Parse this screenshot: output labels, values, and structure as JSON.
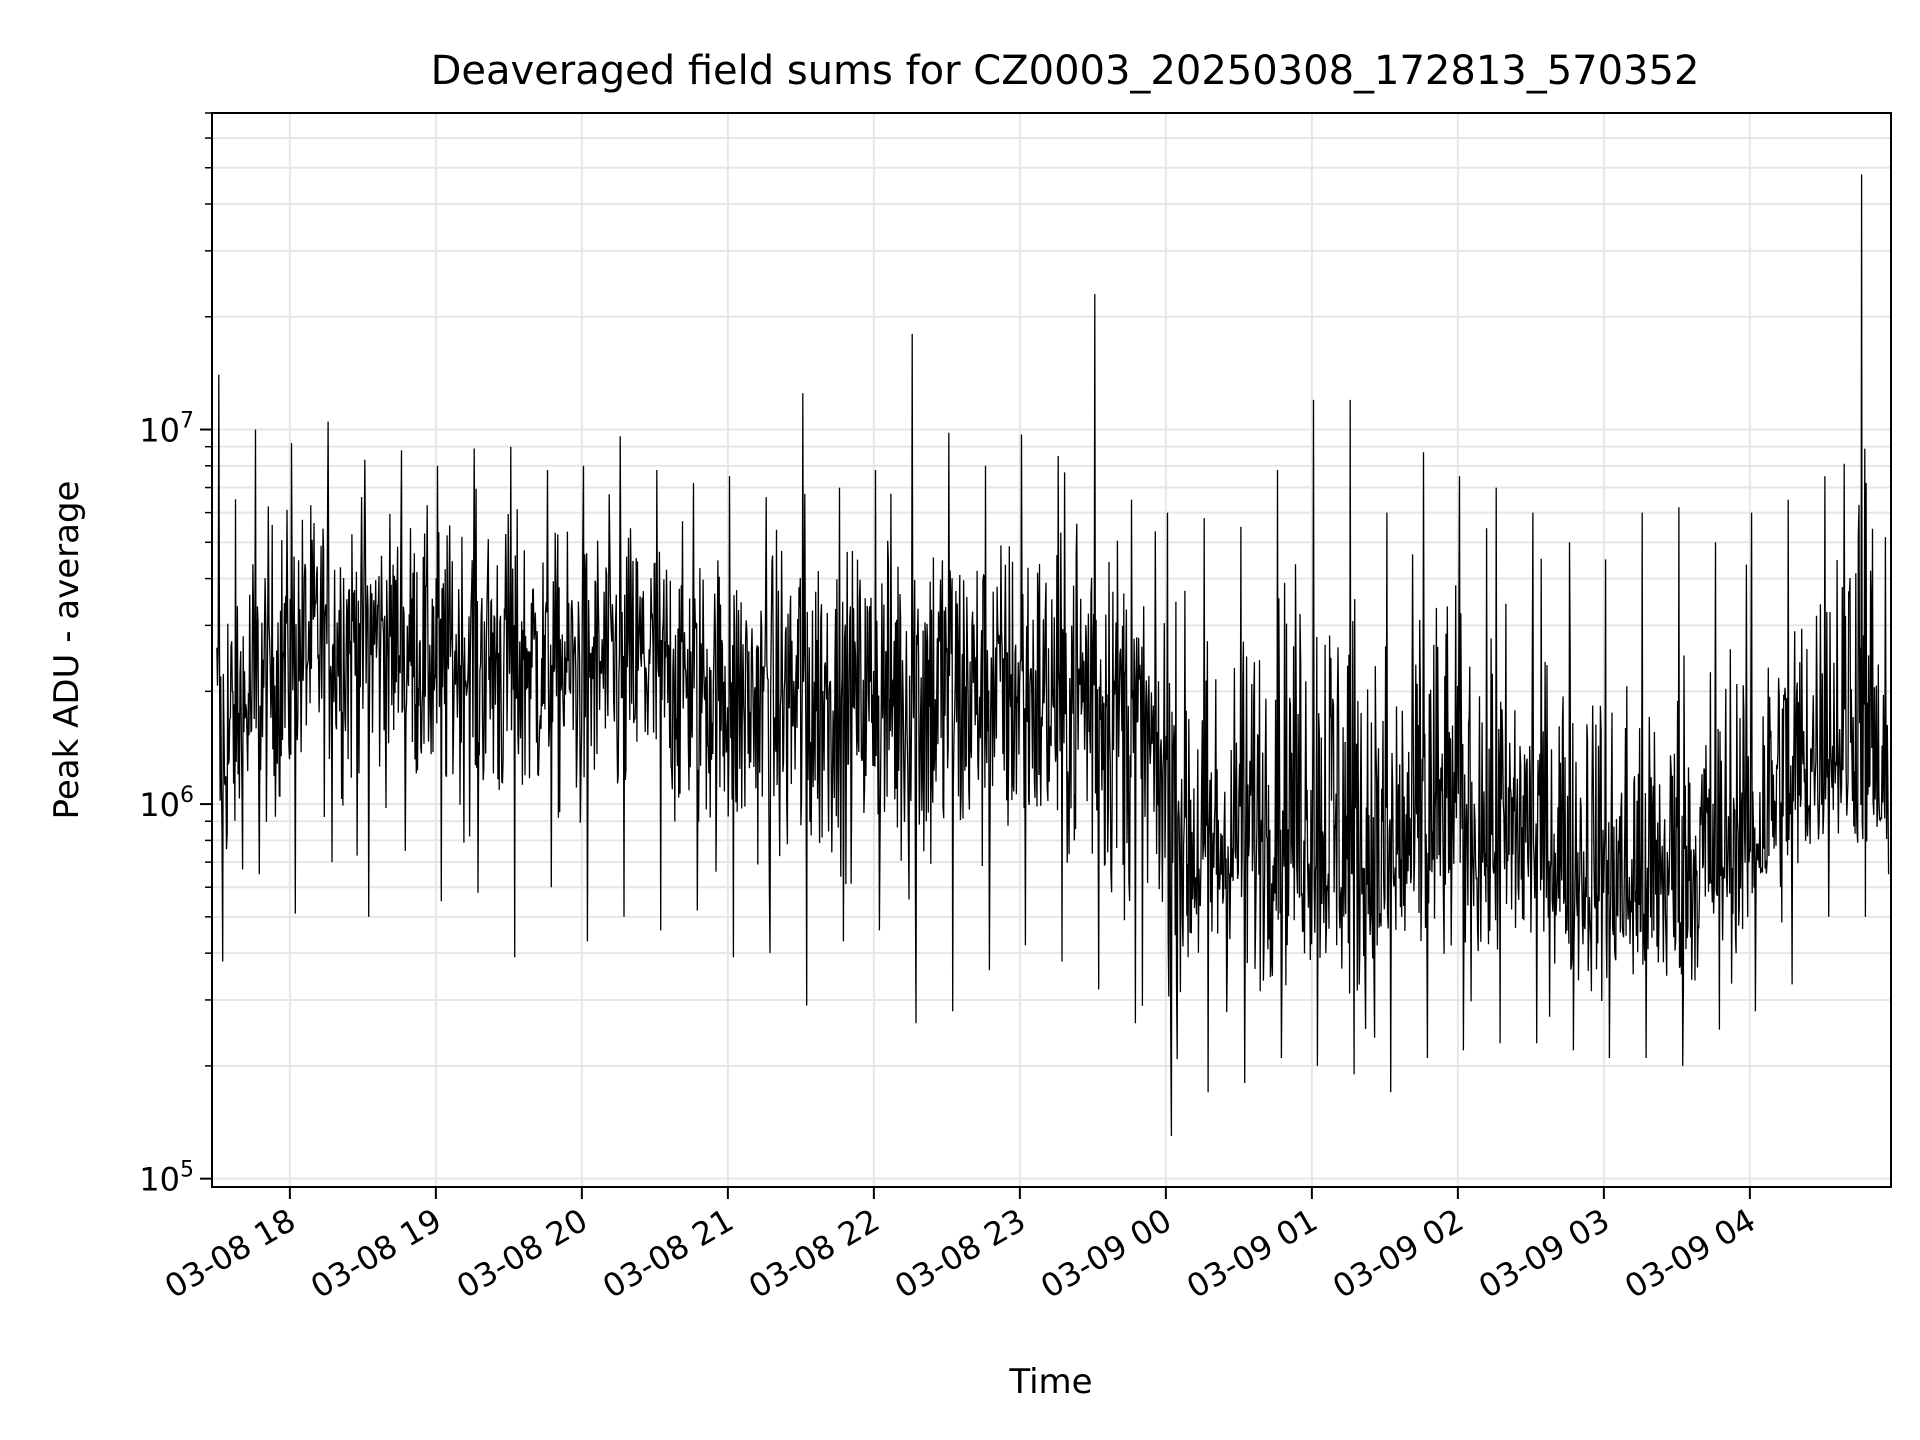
{
  "chart_data": {
    "type": "line",
    "title": "Deaveraged field sums for CZ0003_20250308_172813_570352",
    "xlabel": "Time",
    "ylabel": "Peak ADU - average",
    "x_tick_labels": [
      "03-08 18",
      "03-08 19",
      "03-08 20",
      "03-08 21",
      "03-08 22",
      "03-08 23",
      "03-09 00",
      "03-09 01",
      "03-09 02",
      "03-09 03",
      "03-09 04"
    ],
    "x_ticks": [
      "2025-03-08 18:00",
      "2025-03-08 19:00",
      "2025-03-08 20:00",
      "2025-03-08 21:00",
      "2025-03-08 22:00",
      "2025-03-08 23:00",
      "2025-03-09 00:00",
      "2025-03-09 01:00",
      "2025-03-09 02:00",
      "2025-03-09 03:00",
      "2025-03-09 04:00"
    ],
    "xlim": [
      "2025-03-08 17:28",
      "2025-03-09 04:58"
    ],
    "y_scale": "log",
    "ylim": [
      95000,
      70000000
    ],
    "y_ticks": [
      {
        "base": "10",
        "exp": "5",
        "value": 100000
      },
      {
        "base": "10",
        "exp": "6",
        "value": 1000000
      },
      {
        "base": "10",
        "exp": "7",
        "value": 10000000
      }
    ],
    "grid": true,
    "line_color": "#000000",
    "grid_color": "#e6e6e6",
    "series": [
      {
        "name": "",
        "x": [
          "2025-03-08 17:30",
          "2025-03-08 17:45",
          "2025-03-08 18:00",
          "2025-03-08 18:15",
          "2025-03-08 18:30",
          "2025-03-08 18:45",
          "2025-03-08 19:00",
          "2025-03-08 19:15",
          "2025-03-08 19:30",
          "2025-03-08 19:45",
          "2025-03-08 20:00",
          "2025-03-08 20:15",
          "2025-03-08 20:30",
          "2025-03-08 20:45",
          "2025-03-08 21:00",
          "2025-03-08 21:15",
          "2025-03-08 21:30",
          "2025-03-08 21:45",
          "2025-03-08 22:00",
          "2025-03-08 22:15",
          "2025-03-08 22:30",
          "2025-03-08 22:45",
          "2025-03-08 23:00",
          "2025-03-08 23:15",
          "2025-03-08 23:30",
          "2025-03-08 23:45",
          "2025-03-09 00:00",
          "2025-03-09 00:15",
          "2025-03-09 00:30",
          "2025-03-09 00:45",
          "2025-03-09 01:00",
          "2025-03-09 01:15",
          "2025-03-09 01:30",
          "2025-03-09 01:45",
          "2025-03-09 02:00",
          "2025-03-09 02:15",
          "2025-03-09 02:30",
          "2025-03-09 02:45",
          "2025-03-09 03:00",
          "2025-03-09 03:15",
          "2025-03-09 03:30",
          "2025-03-09 03:45",
          "2025-03-09 04:00",
          "2025-03-09 04:15",
          "2025-03-09 04:30",
          "2025-03-09 04:45",
          "2025-03-09 04:57"
        ],
        "y": [
          1200000,
          1800000,
          2600000,
          2800000,
          3000000,
          2700000,
          2600000,
          2500000,
          2600000,
          2400000,
          2300000,
          2400000,
          2500000,
          2200000,
          2000000,
          1900000,
          1900000,
          2000000,
          2000000,
          1900000,
          2100000,
          2000000,
          2000000,
          1900000,
          1900000,
          1800000,
          1100000,
          700000,
          800000,
          900000,
          900000,
          700000,
          650000,
          800000,
          900000,
          750000,
          800000,
          700000,
          600000,
          550000,
          600000,
          700000,
          800000,
          1100000,
          1400000,
          1500000,
          800000
        ],
        "y_max": [
          14000000,
          10000000,
          9200000,
          10500000,
          8300000,
          8800000,
          8000000,
          8900000,
          9000000,
          7800000,
          8000000,
          9600000,
          7800000,
          7200000,
          7500000,
          6600000,
          12500000,
          7000000,
          7800000,
          18000000,
          9800000,
          8000000,
          9700000,
          8500000,
          23000000,
          6500000,
          6000000,
          5800000,
          5500000,
          7800000,
          12000000,
          12000000,
          6000000,
          8700000,
          7500000,
          7000000,
          6000000,
          5000000,
          4500000,
          6000000,
          6200000,
          5000000,
          6000000,
          6500000,
          7500000,
          48000000,
          10000000
        ],
        "y_min": [
          380000,
          650000,
          510000,
          700000,
          500000,
          750000,
          550000,
          580000,
          390000,
          600000,
          430000,
          500000,
          460000,
          520000,
          390000,
          400000,
          290000,
          430000,
          460000,
          260000,
          280000,
          360000,
          420000,
          380000,
          320000,
          260000,
          130000,
          170000,
          180000,
          210000,
          200000,
          190000,
          170000,
          210000,
          220000,
          230000,
          230000,
          220000,
          210000,
          210000,
          200000,
          250000,
          280000,
          330000,
          500000,
          500000,
          650000
        ]
      }
    ]
  }
}
